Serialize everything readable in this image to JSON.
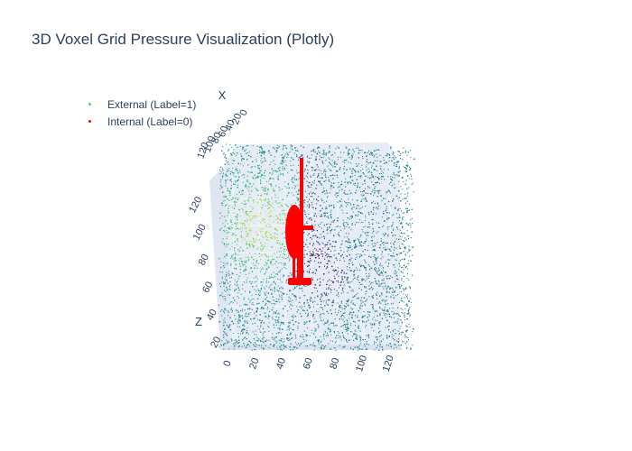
{
  "chart_data": {
    "type": "scatter3d",
    "title": "3D Voxel Grid Pressure Visualization (Plotly)",
    "axes": {
      "x": {
        "label": "X",
        "ticks": [
          "0",
          "20",
          "40",
          "60",
          "80",
          "100",
          "120"
        ],
        "range": [
          0,
          128
        ]
      },
      "y": {
        "label": "",
        "ticks": [
          "0",
          "20",
          "40",
          "60",
          "80",
          "100",
          "120"
        ],
        "range": [
          0,
          128
        ]
      },
      "z": {
        "label": "Z",
        "ticks": [
          "20",
          "40",
          "60",
          "80",
          "100",
          "120"
        ],
        "range": [
          0,
          128
        ]
      }
    },
    "series": [
      {
        "name": "External (Label=1)",
        "label_value": 1,
        "color": "#440154",
        "colorscale": "Viridis",
        "marker_size": 1
      },
      {
        "name": "Internal (Label=0)",
        "label_value": 0,
        "color": "#ff0000",
        "marker_size": 1
      }
    ],
    "legend_position": "top-left",
    "scene_background": "#e5ecf6"
  }
}
